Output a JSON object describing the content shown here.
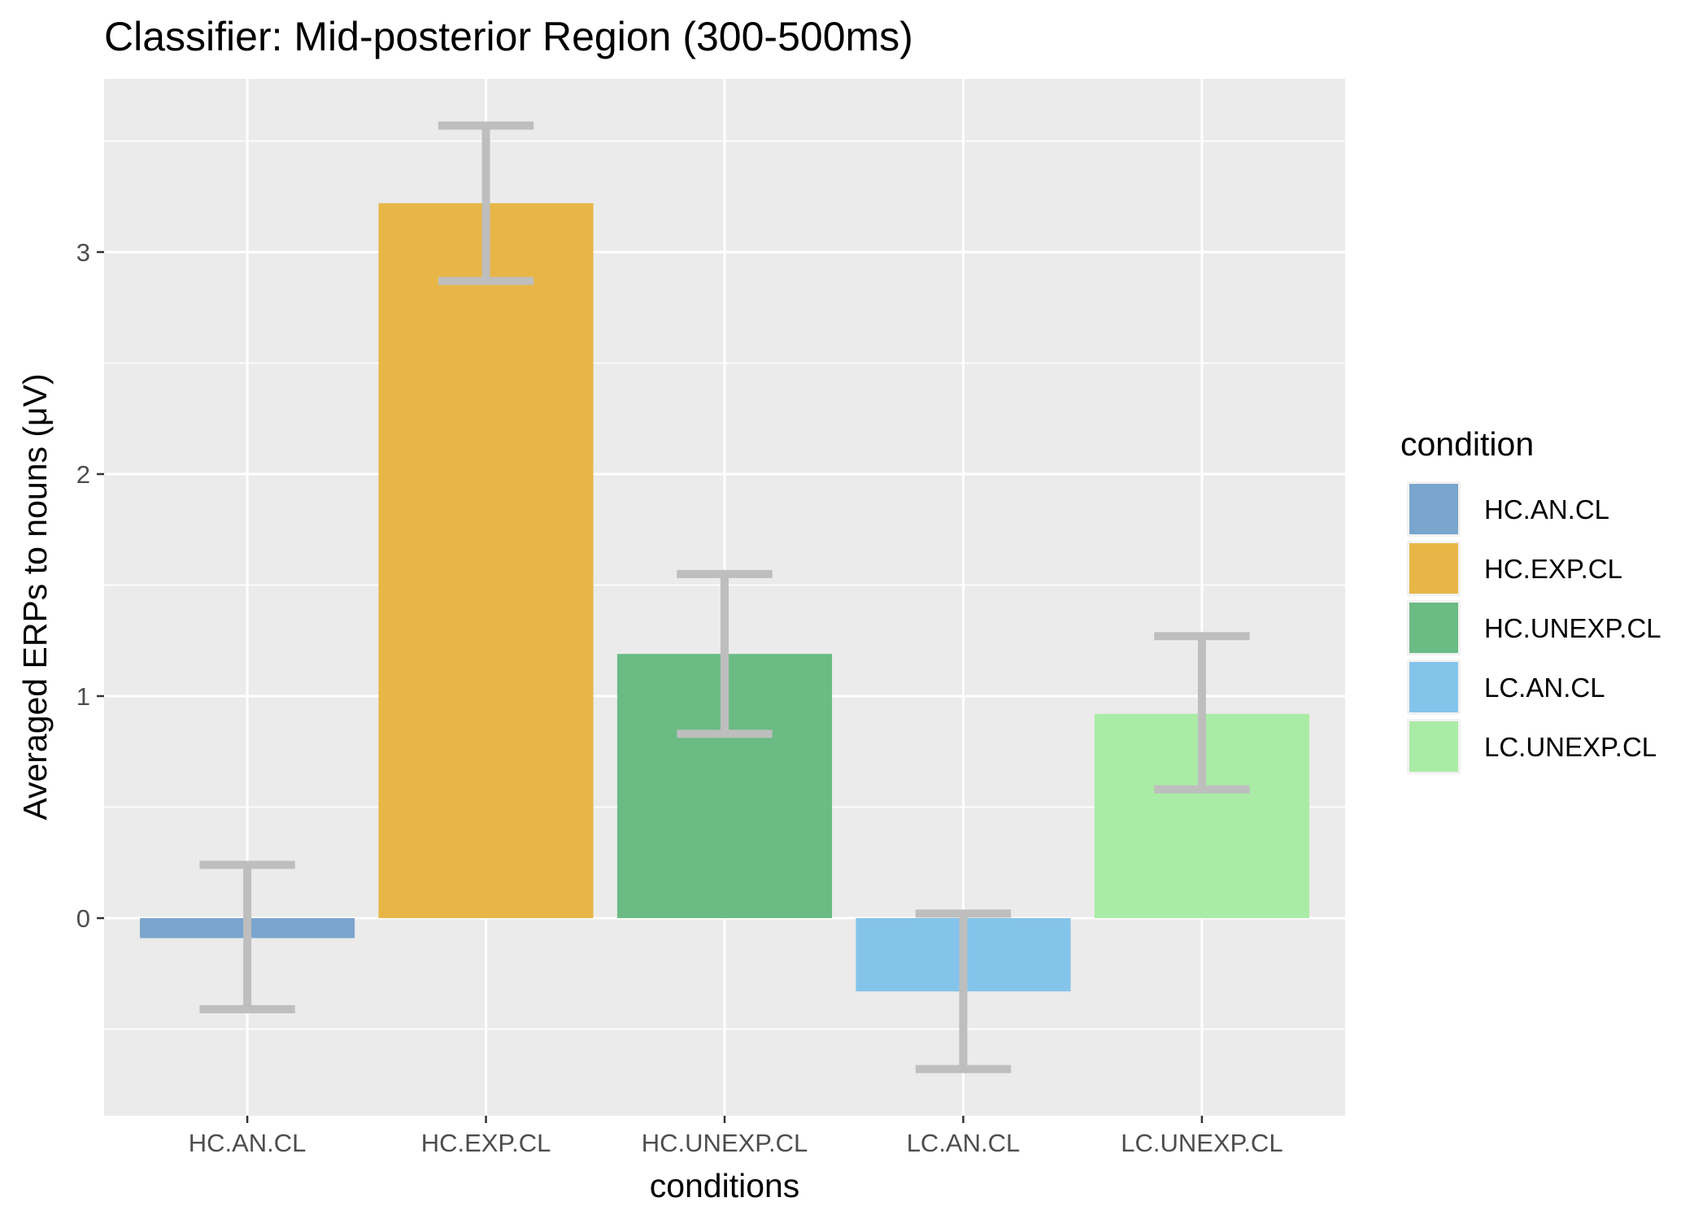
{
  "chart_data": {
    "type": "bar",
    "title": "Classifier: Mid-posterior Region (300-500ms)",
    "xlabel": "conditions",
    "ylabel": "Averaged ERPs to nouns (μV)",
    "categories": [
      "HC.AN.CL",
      "HC.EXP.CL",
      "HC.UNEXP.CL",
      "LC.AN.CL",
      "LC.UNEXP.CL"
    ],
    "values": [
      -0.09,
      3.22,
      1.19,
      -0.33,
      0.92
    ],
    "error_low": [
      -0.41,
      2.87,
      0.83,
      -0.68,
      0.58
    ],
    "error_high": [
      0.24,
      3.57,
      1.55,
      0.02,
      1.27
    ],
    "yticks": [
      0,
      1,
      2,
      3
    ],
    "ytick_labels": [
      "0",
      "1",
      "2",
      "3"
    ],
    "ylim": [
      -0.89,
      3.78
    ],
    "grid": true,
    "legend": {
      "title": "condition",
      "placement": "right",
      "entries": [
        "HC.AN.CL",
        "HC.EXP.CL",
        "HC.UNEXP.CL",
        "LC.AN.CL",
        "LC.UNEXP.CL"
      ]
    },
    "colors": [
      "#7aa5cc",
      "#e8b647",
      "#6bbb84",
      "#85c4ea",
      "#aaeca6"
    ],
    "errorbar_color": "#bebebe",
    "panel_background": "#ebebeb",
    "grid_color": "#ffffff"
  }
}
